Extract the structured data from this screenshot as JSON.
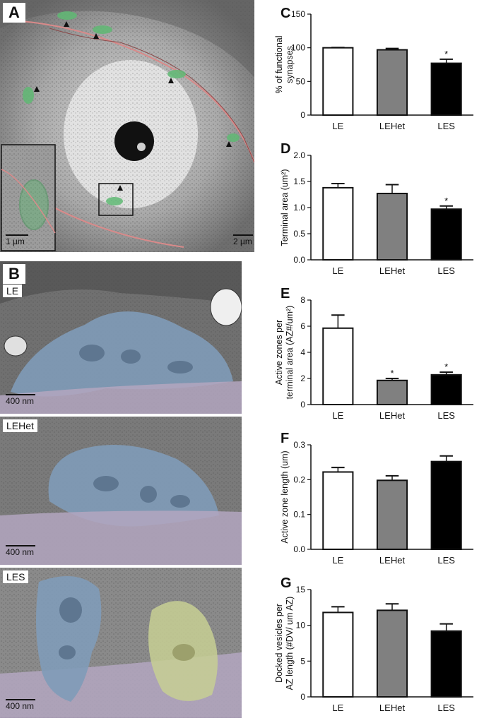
{
  "panel_a": {
    "letter": "A",
    "scale_main": "2 µm",
    "scale_inset": "1 µm"
  },
  "panel_b": {
    "letter": "B",
    "images": [
      {
        "label": "LE",
        "scale": "400 nm"
      },
      {
        "label": "LEHet",
        "scale": "400 nm"
      },
      {
        "label": "LES",
        "scale": "400 nm"
      }
    ]
  },
  "colors": {
    "terminal_blue": "#7f9bb8",
    "postsynaptic_purple": "#b3a6c0",
    "green_label": "#5fb873",
    "yellow_green": "#c7cf93",
    "membrane_red": "#d98a8a"
  },
  "chart_data": [
    {
      "letter": "C",
      "type": "bar",
      "categories": [
        "LE",
        "LEHet",
        "LES"
      ],
      "values": [
        100,
        97,
        77
      ],
      "errors": [
        0.5,
        2,
        6
      ],
      "significance": [
        "",
        "",
        "*"
      ],
      "ylabel": [
        "% of functional",
        "synapses"
      ],
      "ylim": [
        0,
        150
      ],
      "yticks": [
        "0",
        "50",
        "100",
        "150"
      ],
      "bar_colors": [
        "#ffffff",
        "#808080",
        "#000000"
      ]
    },
    {
      "letter": "D",
      "type": "bar",
      "categories": [
        "LE",
        "LEHet",
        "LES"
      ],
      "values": [
        1.38,
        1.27,
        0.97
      ],
      "errors": [
        0.08,
        0.17,
        0.06
      ],
      "significance": [
        "",
        "",
        "*"
      ],
      "ylabel": [
        "Terminal area (um²)"
      ],
      "ylim": [
        0,
        2.0
      ],
      "yticks": [
        "0.0",
        "0.5",
        "1.0",
        "1.5",
        "2.0"
      ],
      "bar_colors": [
        "#ffffff",
        "#808080",
        "#000000"
      ]
    },
    {
      "letter": "E",
      "type": "bar",
      "categories": [
        "LE",
        "LEHet",
        "LES"
      ],
      "values": [
        5.85,
        1.85,
        2.28
      ],
      "errors": [
        1.0,
        0.15,
        0.2
      ],
      "significance": [
        "",
        "*",
        "*"
      ],
      "ylabel": [
        "Active zones per",
        "terminal area (AZ#/um²)"
      ],
      "ylim": [
        0,
        8
      ],
      "yticks": [
        "0",
        "2",
        "4",
        "6",
        "8"
      ],
      "bar_colors": [
        "#ffffff",
        "#808080",
        "#000000"
      ]
    },
    {
      "letter": "F",
      "type": "bar",
      "categories": [
        "LE",
        "LEHet",
        "LES"
      ],
      "values": [
        0.222,
        0.198,
        0.252
      ],
      "errors": [
        0.013,
        0.013,
        0.016
      ],
      "significance": [
        "",
        "",
        ""
      ],
      "ylabel": [
        "Active zone length (um)"
      ],
      "ylim": [
        0,
        0.3
      ],
      "yticks": [
        "0.0",
        "0.1",
        "0.2",
        "0.3"
      ],
      "bar_colors": [
        "#ffffff",
        "#808080",
        "#000000"
      ]
    },
    {
      "letter": "G",
      "type": "bar",
      "categories": [
        "LE",
        "LEHet",
        "LES"
      ],
      "values": [
        11.8,
        12.1,
        9.2
      ],
      "errors": [
        0.8,
        0.9,
        1.0
      ],
      "significance": [
        "",
        "",
        ""
      ],
      "ylabel": [
        "Docked vesicles per",
        "AZ length (#DV/ um AZ)"
      ],
      "ylim": [
        0,
        15
      ],
      "yticks": [
        "0",
        "5",
        "10",
        "15"
      ],
      "bar_colors": [
        "#ffffff",
        "#808080",
        "#000000"
      ]
    }
  ]
}
